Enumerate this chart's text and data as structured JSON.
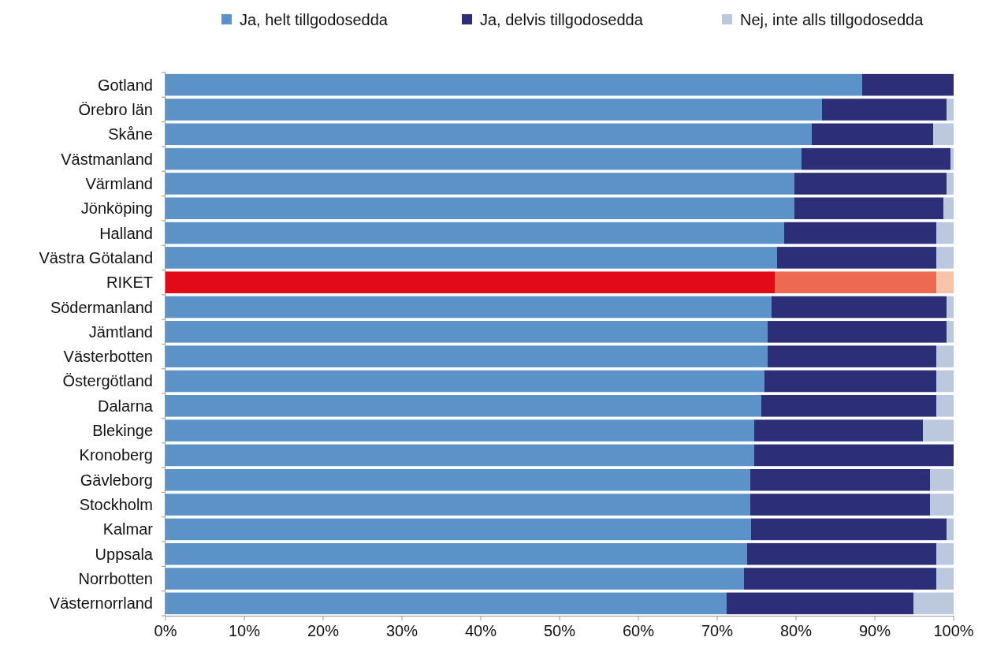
{
  "chart_data": {
    "type": "bar",
    "orientation": "horizontal",
    "stacked": true,
    "legend": "top right",
    "grid": false,
    "categories": [
      "Gotland",
      "Örebro län",
      "Skåne",
      "Västmanland",
      "Värmland",
      "Jönköping",
      "Halland",
      "Västra Götaland",
      "RIKET",
      "Södermanland",
      "Jämtland",
      "Västerbotten",
      "Östergötland",
      "Dalarna",
      "Blekinge",
      "Kronoberg",
      "Gävleborg",
      "Stockholm",
      "Kalmar",
      "Uppsala",
      "Norrbotten",
      "Västernorrland"
    ],
    "series": [
      {
        "name": "Ja, helt tillgodosedda",
        "color": "#5b93c8",
        "colors": [
          "#5b93c8",
          "#5b93c8",
          "#5b93c8",
          "#5b93c8",
          "#5b93c8",
          "#5b93c8",
          "#5b93c8",
          "#5b93c8",
          "#e20a17",
          "#5b93c8",
          "#5b93c8",
          "#5b93c8",
          "#5b93c8",
          "#5b93c8",
          "#5b93c8",
          "#5b93c8",
          "#5b93c8",
          "#5b93c8",
          "#5b93c8",
          "#5b93c8",
          "#5b93c8",
          "#5b93c8"
        ],
        "values": [
          88.4,
          83.3,
          82.0,
          80.7,
          79.8,
          79.8,
          78.5,
          77.6,
          77.3,
          76.9,
          76.4,
          76.4,
          76.0,
          75.6,
          74.7,
          74.7,
          74.2,
          74.2,
          74.3,
          73.8,
          73.4,
          71.2
        ]
      },
      {
        "name": "Ja, delvis tillgodosedda",
        "color": "#2c2f78",
        "colors": [
          "#2c2f78",
          "#2c2f78",
          "#2c2f78",
          "#2c2f78",
          "#2c2f78",
          "#2c2f78",
          "#2c2f78",
          "#2c2f78",
          "#ec6a52",
          "#2c2f78",
          "#2c2f78",
          "#2c2f78",
          "#2c2f78",
          "#2c2f78",
          "#2c2f78",
          "#2c2f78",
          "#2c2f78",
          "#2c2f78",
          "#2c2f78",
          "#2c2f78",
          "#2c2f78",
          "#2c2f78"
        ],
        "values": [
          11.6,
          15.8,
          15.4,
          18.9,
          19.3,
          18.9,
          19.3,
          20.2,
          20.5,
          22.2,
          22.7,
          21.4,
          21.8,
          22.2,
          21.4,
          25.3,
          22.8,
          22.8,
          24.8,
          24.0,
          24.4,
          23.7
        ]
      },
      {
        "name": "Nej, inte alls tillgodosedda",
        "color": "#bcc8de",
        "colors": [
          "#bcc8de",
          "#bcc8de",
          "#bcc8de",
          "#bcc8de",
          "#bcc8de",
          "#bcc8de",
          "#bcc8de",
          "#bcc8de",
          "#f8c3aa",
          "#bcc8de",
          "#bcc8de",
          "#bcc8de",
          "#bcc8de",
          "#bcc8de",
          "#bcc8de",
          "#bcc8de",
          "#bcc8de",
          "#bcc8de",
          "#bcc8de",
          "#bcc8de",
          "#bcc8de",
          "#bcc8de"
        ],
        "values": [
          0,
          0.9,
          2.6,
          0.4,
          0.9,
          1.3,
          2.2,
          2.2,
          2.2,
          0.9,
          0.9,
          2.2,
          2.2,
          2.2,
          3.9,
          0,
          3.0,
          3.0,
          0.9,
          2.2,
          2.2,
          5.1
        ]
      }
    ],
    "xlim": [
      0,
      100
    ],
    "xticks": [
      {
        "value": 0,
        "label": "0%"
      },
      {
        "value": 10,
        "label": "10%"
      },
      {
        "value": 20,
        "label": "20%"
      },
      {
        "value": 30,
        "label": "30%"
      },
      {
        "value": 40,
        "label": "40%"
      },
      {
        "value": 50,
        "label": "50%"
      },
      {
        "value": 60,
        "label": "60%"
      },
      {
        "value": 70,
        "label": "70%"
      },
      {
        "value": 80,
        "label": "80%"
      },
      {
        "value": 90,
        "label": "90%"
      },
      {
        "value": 100,
        "label": "100%"
      }
    ]
  }
}
